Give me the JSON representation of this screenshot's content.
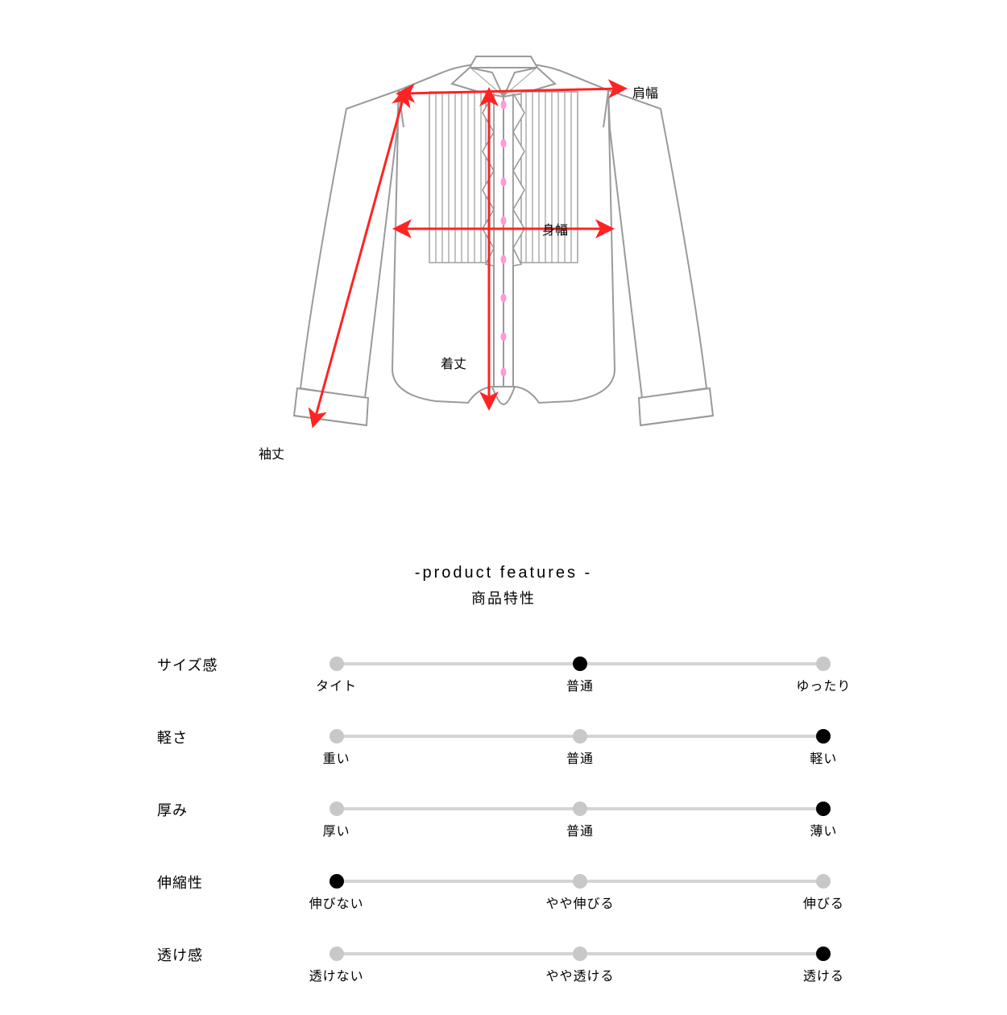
{
  "colors": {
    "background": "#ffffff",
    "shirt_line": "#9a9a9a",
    "shirt_fill": "#ffffff",
    "pleat_line": "#9a9a9a",
    "button": "#ff9ad5",
    "arrow": "#ff2323",
    "text": "#000000",
    "track": "#d4d4d4",
    "dot_inactive": "#c8c8c8",
    "dot_active": "#000000"
  },
  "shirt_diagram": {
    "labels": {
      "shoulder": "肩幅",
      "width": "身幅",
      "length": "着丈",
      "sleeve": "袖丈"
    }
  },
  "features_title": {
    "en": "-product features -",
    "ja": "商品特性"
  },
  "slider_positions_pct": [
    2,
    50,
    98
  ],
  "features": [
    {
      "name": "サイズ感",
      "options": [
        "タイト",
        "普通",
        "ゆったり"
      ],
      "selected": 1
    },
    {
      "name": "軽さ",
      "options": [
        "重い",
        "普通",
        "軽い"
      ],
      "selected": 2
    },
    {
      "name": "厚み",
      "options": [
        "厚い",
        "普通",
        "薄い"
      ],
      "selected": 2
    },
    {
      "name": "伸縮性",
      "options": [
        "伸びない",
        "やや伸びる",
        "伸びる"
      ],
      "selected": 0
    },
    {
      "name": "透け感",
      "options": [
        "透けない",
        "やや透ける",
        "透ける"
      ],
      "selected": 2
    }
  ],
  "typography": {
    "label_fontsize": 16,
    "row_label_fontsize": 18,
    "title_en_fontsize": 20,
    "title_ja_fontsize": 18
  }
}
